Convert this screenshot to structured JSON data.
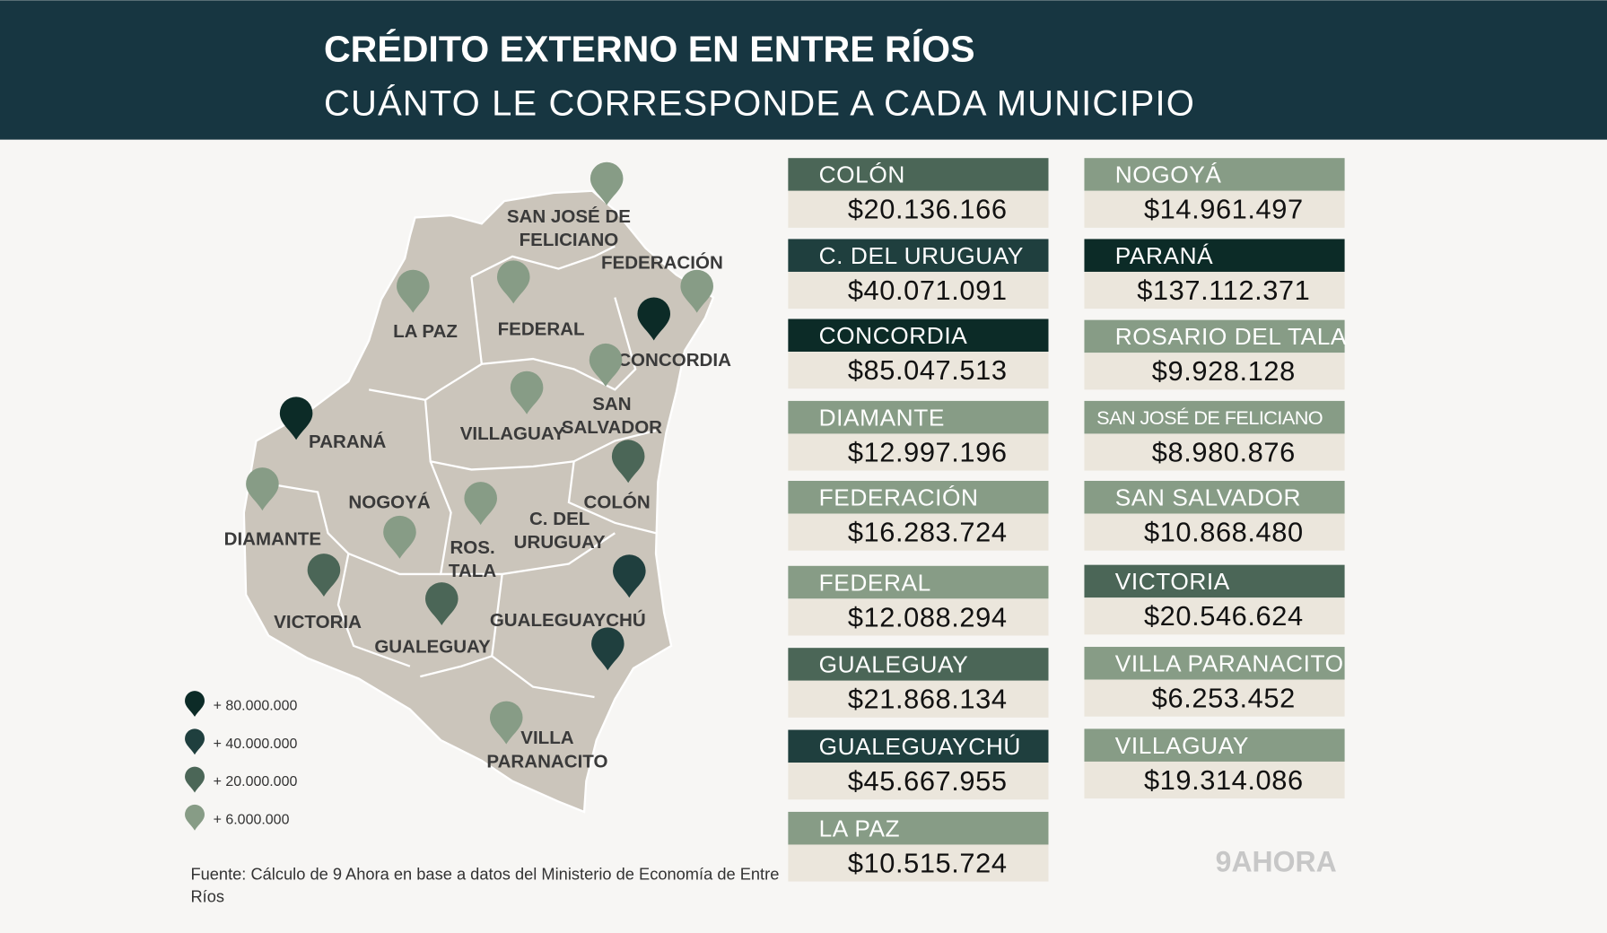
{
  "header": {
    "title": "CRÉDITO EXTERNO EN ENTRE RÍOS",
    "subtitle": "CUÁNTO LE CORRESPONDE A CADA MUNICIPIO"
  },
  "map": {
    "places": [
      {
        "lines": [
          "SAN JOSÉ DE",
          "FELICIANO"
        ],
        "color": "#879c86"
      },
      {
        "lines": [
          "FEDERACIÓN"
        ],
        "color": "#879c86"
      },
      {
        "lines": [
          "LA PAZ"
        ],
        "color": "#879c86"
      },
      {
        "lines": [
          "FEDERAL"
        ],
        "color": "#879c86"
      },
      {
        "lines": [
          "CONCORDIA"
        ],
        "color": "#0c2b27"
      },
      {
        "lines": [
          "SAN",
          "SALVADOR"
        ],
        "color": "#879c86"
      },
      {
        "lines": [
          "VILLAGUAY"
        ],
        "color": "#879c86"
      },
      {
        "lines": [
          "PARANÁ"
        ],
        "color": "#0c2b27"
      },
      {
        "lines": [
          "COLÓN"
        ],
        "color": "#4b6657"
      },
      {
        "lines": [
          "DIAMANTE"
        ],
        "color": "#879c86"
      },
      {
        "lines": [
          "NOGOYÁ"
        ],
        "color": "#879c86"
      },
      {
        "lines": [
          "ROS.",
          "TALA"
        ],
        "color": "#879c86"
      },
      {
        "lines": [
          "C. DEL",
          "URUGUAY"
        ],
        "color": "#1f3f3e"
      },
      {
        "lines": [
          "VICTORIA"
        ],
        "color": "#4b6657"
      },
      {
        "lines": [
          "GUALEGUAY"
        ],
        "color": "#4b6657"
      },
      {
        "lines": [
          "GUALEGUAYCHÚ"
        ],
        "color": "#1f3f3e"
      },
      {
        "lines": [
          "VILLA",
          "PARANACITO"
        ],
        "color": "#879c86"
      }
    ],
    "legend": [
      {
        "label": "+ 80.000.000",
        "color": "#0c2b27"
      },
      {
        "label": "+ 40.000.000",
        "color": "#1f3f3e"
      },
      {
        "label": "+ 20.000.000",
        "color": "#4b6657"
      },
      {
        "label": "+ 6.000.000",
        "color": "#879c86"
      }
    ]
  },
  "cards": [
    {
      "name": "COLÓN",
      "amount": "$20.136.166",
      "color": "#4b6657"
    },
    {
      "name": "C. DEL URUGUAY",
      "amount": "$40.071.091",
      "color": "#1f3f3e"
    },
    {
      "name": "CONCORDIA",
      "amount": "$85.047.513",
      "color": "#0c2b27"
    },
    {
      "name": "DIAMANTE",
      "amount": "$12.997.196",
      "color": "#879c86"
    },
    {
      "name": "FEDERACIÓN",
      "amount": "$16.283.724",
      "color": "#879c86"
    },
    {
      "name": "FEDERAL",
      "amount": "$12.088.294",
      "color": "#879c86"
    },
    {
      "name": "GUALEGUAY",
      "amount": "$21.868.134",
      "color": "#4b6657"
    },
    {
      "name": "GUALEGUAYCHÚ",
      "amount": "$45.667.955",
      "color": "#1f3f3e"
    },
    {
      "name": "LA PAZ",
      "amount": "$10.515.724",
      "color": "#879c86"
    },
    {
      "name": "NOGOYÁ",
      "amount": "$14.961.497",
      "color": "#879c86"
    },
    {
      "name": "PARANÁ",
      "amount": "$137.112.371",
      "color": "#0c2b27"
    },
    {
      "name": "ROSARIO DEL TALA",
      "amount": "$9.928.128",
      "color": "#879c86"
    },
    {
      "name": "SAN JOSÉ DE FELICIANO",
      "amount": "$8.980.876",
      "color": "#879c86"
    },
    {
      "name": "SAN SALVADOR",
      "amount": "$10.868.480",
      "color": "#879c86"
    },
    {
      "name": "VICTORIA",
      "amount": "$20.546.624",
      "color": "#4b6657"
    },
    {
      "name": "VILLA PARANACITO",
      "amount": "$6.253.452",
      "color": "#879c86"
    },
    {
      "name": "VILLAGUAY",
      "amount": "$19.314.086",
      "color": "#879c86"
    }
  ],
  "source": [
    "Fuente: Cálculo de 9 Ahora en base a datos del Ministerio de Economía de Entre",
    "Ríos"
  ],
  "logo": "9AHORA"
}
